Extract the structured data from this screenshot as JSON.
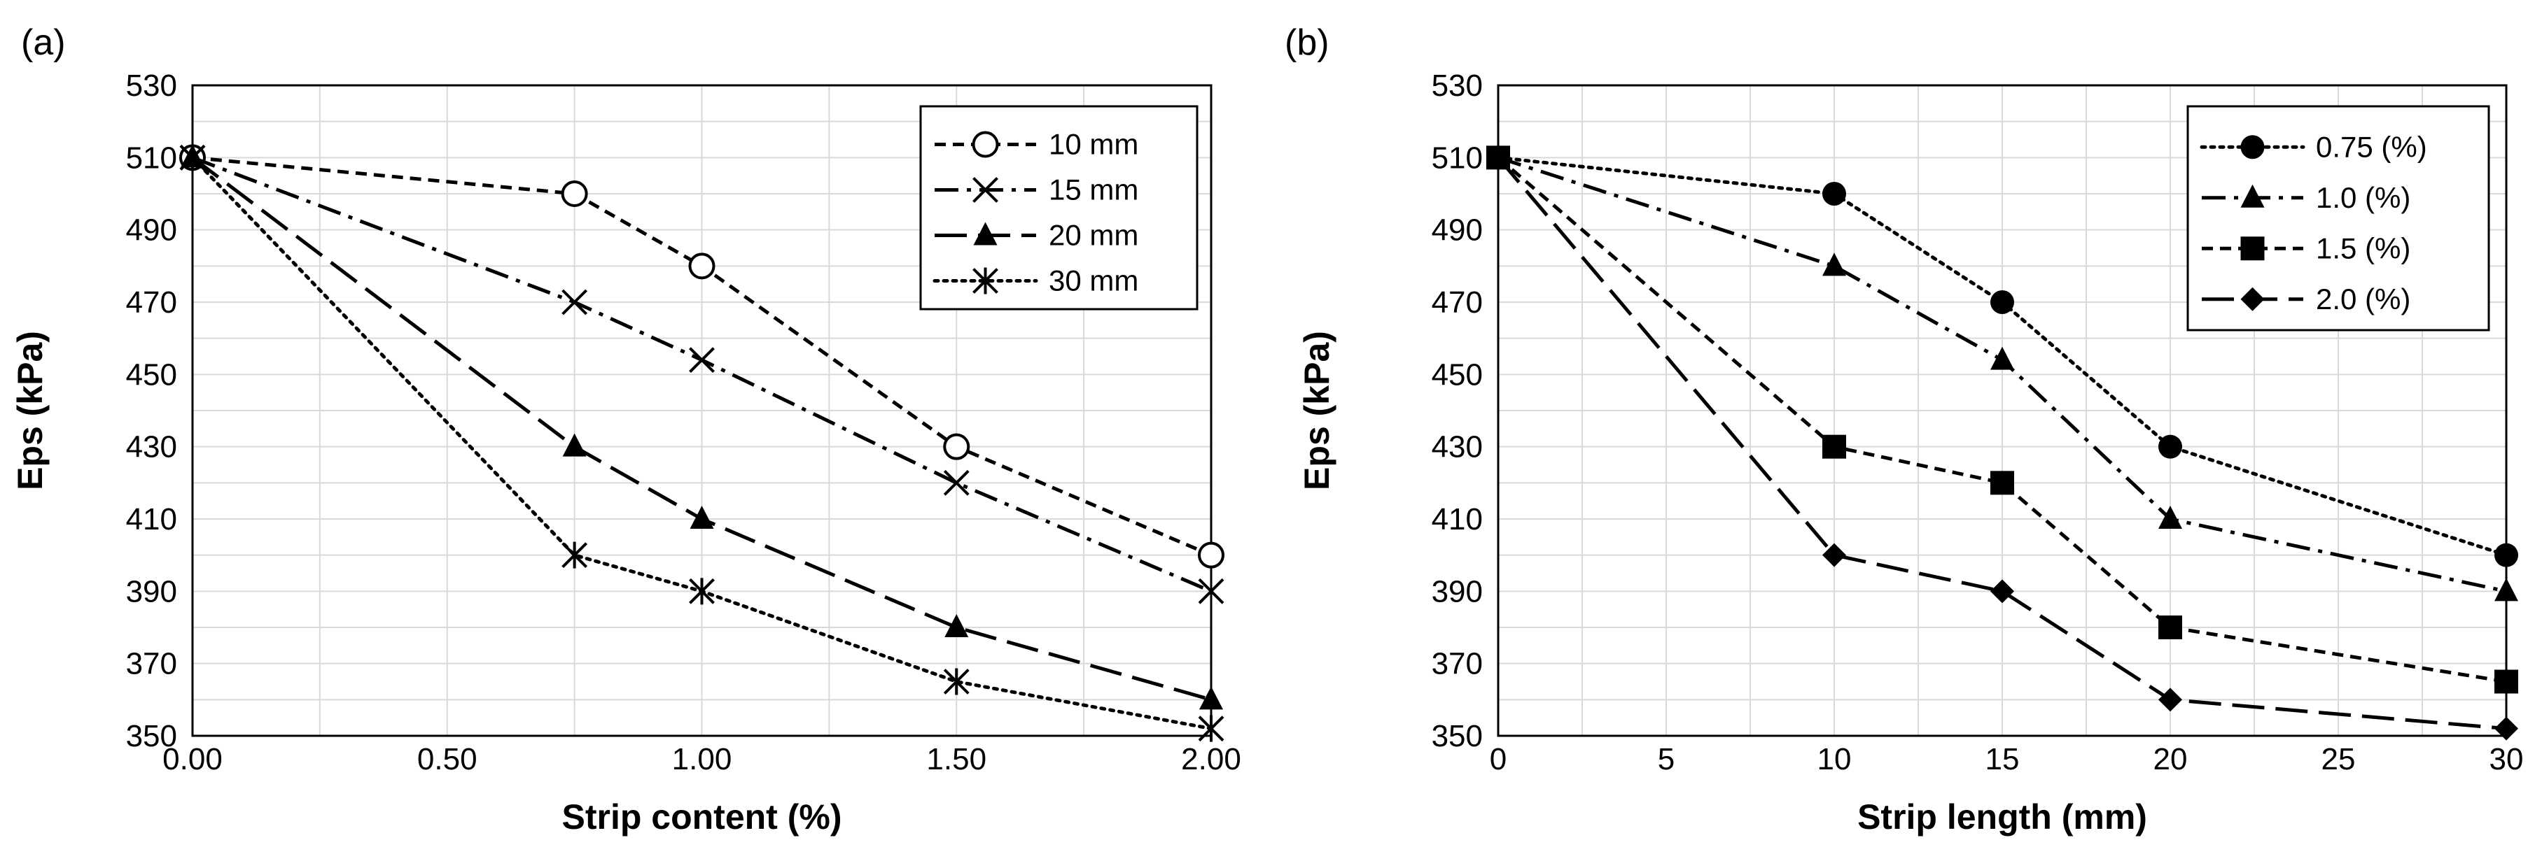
{
  "chart_data": [
    {
      "type": "line",
      "panel_label": "(a)",
      "title": "",
      "xlabel": "Strip content (%)",
      "ylabel": "Eps (kPa)",
      "xlim": [
        0,
        2
      ],
      "ylim": [
        350,
        530
      ],
      "x_ticks": [
        0,
        0.5,
        1,
        1.5,
        2
      ],
      "x_tick_labels": [
        "0.00",
        "0.50",
        "1.00",
        "1.50",
        "2.00"
      ],
      "y_ticks": [
        350,
        370,
        390,
        410,
        430,
        450,
        470,
        490,
        510,
        530
      ],
      "y_tick_labels": [
        "350",
        "370",
        "390",
        "410",
        "430",
        "450",
        "470",
        "490",
        "510",
        "530"
      ],
      "grid": true,
      "legend_position": "top-right",
      "series": [
        {
          "name": "10 mm",
          "marker": "open-circle",
          "dash": "short-dash",
          "x": [
            0,
            0.75,
            1,
            1.5,
            2
          ],
          "values": [
            510,
            500,
            480,
            430,
            400
          ]
        },
        {
          "name": "15 mm",
          "marker": "x",
          "dash": "dash-dot",
          "x": [
            0,
            0.75,
            1,
            1.5,
            2
          ],
          "values": [
            510,
            470,
            454,
            420,
            390
          ]
        },
        {
          "name": "20 mm",
          "marker": "triangle",
          "dash": "long-dash",
          "x": [
            0,
            0.75,
            1,
            1.5,
            2
          ],
          "values": [
            510,
            430,
            410,
            380,
            360
          ]
        },
        {
          "name": "30 mm",
          "marker": "asterisk",
          "dash": "dot",
          "x": [
            0,
            0.75,
            1,
            1.5,
            2
          ],
          "values": [
            510,
            400,
            390,
            365,
            352
          ]
        }
      ]
    },
    {
      "type": "line",
      "panel_label": "(b)",
      "title": "",
      "xlabel": "Strip length (mm)",
      "ylabel": "Eps (kPa)",
      "xlim": [
        0,
        30
      ],
      "ylim": [
        350,
        530
      ],
      "x_ticks": [
        0,
        5,
        10,
        15,
        20,
        25,
        30
      ],
      "x_tick_labels": [
        "0",
        "5",
        "10",
        "15",
        "20",
        "25",
        "30"
      ],
      "y_ticks": [
        350,
        370,
        390,
        410,
        430,
        450,
        470,
        490,
        510,
        530
      ],
      "y_tick_labels": [
        "350",
        "370",
        "390",
        "410",
        "430",
        "450",
        "470",
        "490",
        "510",
        "530"
      ],
      "grid": true,
      "legend_position": "top-right",
      "series": [
        {
          "name": "0.75 (%)",
          "marker": "filled-circle",
          "dash": "dot",
          "x": [
            0,
            10,
            15,
            20,
            30
          ],
          "values": [
            510,
            500,
            470,
            430,
            400
          ]
        },
        {
          "name": "1.0 (%)",
          "marker": "triangle",
          "dash": "dash-dot",
          "x": [
            0,
            10,
            15,
            20,
            30
          ],
          "values": [
            510,
            480,
            454,
            410,
            390
          ]
        },
        {
          "name": "1.5 (%)",
          "marker": "square",
          "dash": "short-dash",
          "x": [
            0,
            10,
            15,
            20,
            30
          ],
          "values": [
            510,
            430,
            420,
            380,
            365
          ]
        },
        {
          "name": "2.0 (%)",
          "marker": "diamond",
          "dash": "long-dash",
          "x": [
            0,
            10,
            15,
            20,
            30
          ],
          "values": [
            510,
            400,
            390,
            360,
            352
          ]
        }
      ]
    }
  ]
}
